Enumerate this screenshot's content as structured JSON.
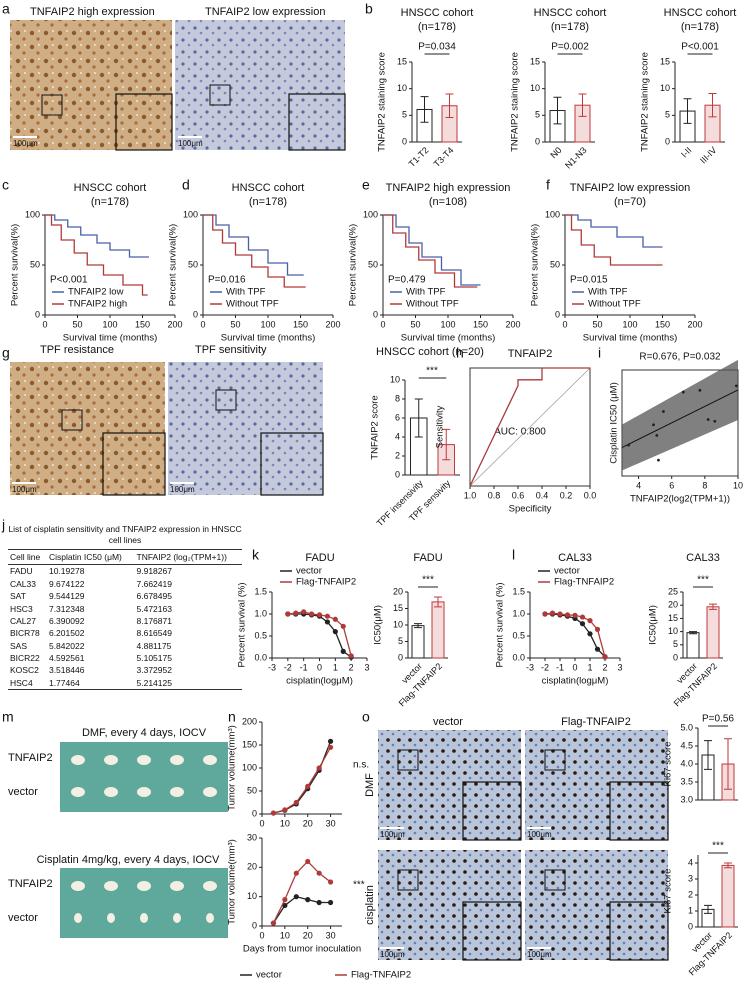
{
  "panel_labels": [
    "a",
    "b",
    "c",
    "d",
    "e",
    "f",
    "g",
    "h",
    "i",
    "j",
    "k",
    "l",
    "m",
    "n",
    "o"
  ],
  "images": {
    "a": {
      "labels": [
        "TNFAIP2 high expression",
        "TNFAIP2 low expression"
      ],
      "scale": [
        "100μm",
        "100μm"
      ]
    },
    "g": {
      "labels": [
        "TPF resistance",
        "TPF sensitivity"
      ],
      "scale": [
        "100μm",
        "100μm"
      ]
    },
    "m": {
      "top_title": "DMF, every 4 days, IOCV",
      "top_rows": [
        "TNFAIP2",
        "vector"
      ],
      "bottom_title": "Cisplatin 4mg/kg, every 4 days, IOCV",
      "bottom_rows": [
        "TNFAIP2",
        "vector"
      ]
    },
    "o": {
      "columns": [
        "vector",
        "Flag-TNFAIP2"
      ],
      "rows": [
        "DMF",
        "cisplatin"
      ],
      "scale": [
        "100μm",
        "100μm",
        "100μm",
        "100μm"
      ]
    }
  },
  "table": {
    "title": "List of cisplatin sensitivity and TNFAIP2 expression in HNSCC cell lines",
    "header": [
      "Cell line",
      "Cisplatin IC50 (μM)",
      "TNFAIP2 (log₂(TPM+1))"
    ],
    "rows": [
      [
        "FADU",
        "10.19278",
        "9.918267"
      ],
      [
        "CAL33",
        "9.674122",
        "7.662419"
      ],
      [
        "SAT",
        "9.544129",
        "6.678495"
      ],
      [
        "HSC3",
        "7.312348",
        "5.472163"
      ],
      [
        "CAL27",
        "6.390092",
        "8.176871"
      ],
      [
        "BICR78",
        "6.201502",
        "8.616549"
      ],
      [
        "SAS",
        "5.842022",
        "4.881175"
      ],
      [
        "BICR22",
        "4.592561",
        "5.105175"
      ],
      [
        "KOSC2",
        "3.518446",
        "3.372952"
      ],
      [
        "HSC4",
        "1.77464",
        "5.214125"
      ]
    ]
  },
  "chart_data": [
    {
      "type": "bar",
      "title": "HNSCC cohort",
      "subtitle": "(n=178)",
      "annotation": "P=0.034",
      "y_label": "TNFAIP2 staining score",
      "categories": [
        "T1-T2",
        "T3-T4"
      ],
      "values": [
        6.1,
        6.8
      ],
      "errors": [
        2.4,
        2.2
      ],
      "colors": [
        "#222222",
        "#c0393b"
      ],
      "ylim": [
        0,
        15
      ],
      "yticks": [
        0,
        5,
        10,
        15
      ]
    },
    {
      "type": "bar",
      "title": "HNSCC cohort",
      "subtitle": "(n=178)",
      "annotation": "P=0.002",
      "y_label": "TNFAIP2 staining score",
      "categories": [
        "N0",
        "N1-N3"
      ],
      "values": [
        5.9,
        6.9
      ],
      "errors": [
        2.5,
        2.1
      ],
      "colors": [
        "#222222",
        "#c0393b"
      ],
      "ylim": [
        0,
        15
      ],
      "yticks": [
        0,
        5,
        10,
        15
      ]
    },
    {
      "type": "bar",
      "title": "HNSCC cohort",
      "subtitle": "(n=178)",
      "annotation": "P<0.001",
      "y_label": "TNFAIP2 staining score",
      "categories": [
        "I-II",
        "III-IV"
      ],
      "values": [
        5.8,
        6.9
      ],
      "errors": [
        2.3,
        2.2
      ],
      "colors": [
        "#222222",
        "#c0393b"
      ],
      "ylim": [
        0,
        15
      ],
      "yticks": [
        0,
        5,
        10,
        15
      ]
    },
    {
      "type": "line",
      "title": "HNSCC cohort",
      "subtitle": "(n=178)",
      "annotation": "P<0.001",
      "x_label": "Survival time (months)",
      "y_label": "Percent survival(%)",
      "xlim": [
        0,
        200
      ],
      "xticks": [
        0,
        50,
        100,
        150,
        200
      ],
      "ylim": [
        0,
        100
      ],
      "yticks": [
        0,
        50,
        100
      ],
      "series": [
        {
          "name": "TNFAIP2 low",
          "color": "#4a5fa8",
          "x": [
            0,
            15,
            15,
            35,
            35,
            55,
            55,
            80,
            80,
            100,
            100,
            130,
            130,
            160
          ],
          "values": [
            100,
            100,
            95,
            95,
            88,
            88,
            80,
            80,
            72,
            72,
            65,
            65,
            58,
            58
          ]
        },
        {
          "name": "TNFAIP2 high",
          "color": "#b03a3a",
          "x": [
            0,
            10,
            10,
            25,
            25,
            45,
            45,
            65,
            65,
            90,
            90,
            120,
            120,
            150,
            150,
            158
          ],
          "values": [
            100,
            100,
            90,
            90,
            75,
            75,
            62,
            62,
            50,
            50,
            40,
            40,
            30,
            30,
            20,
            20
          ]
        }
      ]
    },
    {
      "type": "line",
      "title": "HNSCC cohort",
      "subtitle": "(n=178)",
      "annotation": "P=0.016",
      "x_label": "Survival time (months)",
      "y_label": "Percent survival(%)",
      "xlim": [
        0,
        200
      ],
      "xticks": [
        0,
        50,
        100,
        150,
        200
      ],
      "ylim": [
        0,
        100
      ],
      "yticks": [
        0,
        50,
        100
      ],
      "series": [
        {
          "name": "With TPF",
          "color": "#4a5fa8",
          "x": [
            0,
            20,
            20,
            40,
            40,
            70,
            70,
            100,
            100,
            130,
            130,
            155
          ],
          "values": [
            100,
            100,
            90,
            90,
            78,
            78,
            65,
            65,
            52,
            52,
            40,
            40
          ]
        },
        {
          "name": "Without TPF",
          "color": "#b03a3a",
          "x": [
            0,
            15,
            15,
            30,
            30,
            50,
            50,
            75,
            75,
            100,
            100,
            125,
            125,
            158
          ],
          "values": [
            100,
            100,
            85,
            85,
            72,
            72,
            60,
            60,
            48,
            48,
            38,
            38,
            28,
            28
          ]
        }
      ]
    },
    {
      "type": "line",
      "title": "TNFAIP2 high expression",
      "subtitle": "(n=108)",
      "annotation": "P=0.479",
      "x_label": "Survival time (months)",
      "y_label": "Percent survival(%)",
      "xlim": [
        0,
        200
      ],
      "xticks": [
        0,
        50,
        100,
        150,
        200
      ],
      "ylim": [
        0,
        100
      ],
      "yticks": [
        0,
        50,
        100
      ],
      "series": [
        {
          "name": "With TPF",
          "color": "#4a5fa8",
          "x": [
            0,
            20,
            20,
            40,
            40,
            60,
            60,
            90,
            90,
            120,
            120,
            150
          ],
          "values": [
            100,
            100,
            88,
            88,
            72,
            72,
            58,
            58,
            45,
            45,
            30,
            30
          ]
        },
        {
          "name": "Without TPF",
          "color": "#b03a3a",
          "x": [
            0,
            15,
            15,
            35,
            35,
            55,
            55,
            80,
            80,
            110,
            110,
            145
          ],
          "values": [
            100,
            100,
            82,
            82,
            68,
            68,
            55,
            55,
            42,
            42,
            28,
            28
          ]
        }
      ]
    },
    {
      "type": "line",
      "title": "TNFAIP2 low expression",
      "subtitle": "(n=70)",
      "annotation": "P=0.015",
      "x_label": "Survival time (months)",
      "y_label": "Percent survival(%)",
      "xlim": [
        0,
        200
      ],
      "xticks": [
        0,
        50,
        100,
        150,
        200
      ],
      "ylim": [
        0,
        100
      ],
      "yticks": [
        0,
        50,
        100
      ],
      "series": [
        {
          "name": "With TPF",
          "color": "#4a5fa8",
          "x": [
            0,
            20,
            20,
            40,
            40,
            80,
            80,
            120,
            120,
            150
          ],
          "values": [
            100,
            100,
            95,
            95,
            88,
            88,
            78,
            78,
            68,
            68
          ]
        },
        {
          "name": "Without TPF",
          "color": "#b03a3a",
          "x": [
            0,
            10,
            10,
            25,
            25,
            45,
            45,
            70,
            70,
            150
          ],
          "values": [
            100,
            100,
            85,
            85,
            70,
            70,
            58,
            58,
            50,
            50
          ]
        }
      ]
    },
    {
      "type": "bar",
      "title": "HNSCC cohort (n=20)",
      "annotation": "***",
      "y_label": "TNFAIP2 score",
      "categories": [
        "TPF insensivity",
        "TPF sensivity"
      ],
      "values": [
        6.0,
        3.2
      ],
      "errors": [
        2.0,
        1.6
      ],
      "colors": [
        "#222222",
        "#c0393b"
      ],
      "ylim": [
        0,
        10
      ],
      "yticks": [
        0,
        2,
        4,
        6,
        8,
        10
      ]
    },
    {
      "type": "line",
      "title": "TNFAIP2",
      "annotation": "AUC: 0.800",
      "x_label": "Specificity",
      "y_label": "Sensitivity",
      "xlim": [
        1,
        0
      ],
      "xticks": [
        {
          "value": 1,
          "label": "1.0"
        },
        0.8,
        0.6,
        0.4,
        0.2,
        {
          "value": 0,
          "label": "0.0"
        }
      ],
      "ylim": [
        0,
        1
      ],
      "series": [
        {
          "color": "#a83a3a",
          "x": [
            1,
            0.6,
            0.6,
            0.4,
            0.4,
            0
          ],
          "values": [
            0,
            0.85,
            0.9,
            0.9,
            1,
            1
          ]
        }
      ]
    },
    {
      "type": "scatter",
      "annotation": "R=0.676, P=0.032",
      "x_label": "TNFAIP2(log2(TPM+1))",
      "y_label": "Cisplatin IC50 (μM)",
      "xlim": [
        3,
        10
      ],
      "xticks": [
        4,
        6,
        8,
        10
      ],
      "ylim": [
        0,
        12
      ],
      "color": "#222222",
      "x": [
        9.9,
        7.7,
        6.7,
        5.5,
        8.2,
        8.6,
        4.9,
        5.1,
        3.4,
        5.2
      ],
      "values": [
        10.2,
        9.7,
        9.5,
        7.3,
        6.4,
        6.2,
        5.8,
        4.6,
        3.5,
        1.8
      ]
    },
    {
      "type": "line",
      "title": "FADU",
      "x_label": "cisplatin(logμM)",
      "y_label": "Percent survival (%)",
      "xlim": [
        -3,
        3
      ],
      "xticks": [
        -3,
        -2,
        -1,
        0,
        1,
        2,
        3
      ],
      "ylim": [
        0,
        1.5
      ],
      "yticks": [
        {
          "value": 0,
          "label": "0.0"
        },
        0.5,
        {
          "value": 1,
          "label": "1.0"
        },
        1.5
      ],
      "markers": true,
      "series": [
        {
          "name": "vector",
          "color": "#222222",
          "x": [
            -2,
            -1.5,
            -1,
            -0.5,
            0,
            0.5,
            1,
            1.5,
            2
          ],
          "values": [
            1,
            1,
            1,
            0.98,
            0.95,
            0.82,
            0.6,
            0.15,
            0.02
          ]
        },
        {
          "name": "Flag-TNFAIP2",
          "color": "#b03a3a",
          "x": [
            -2,
            -1.5,
            -1,
            -0.5,
            0,
            0.5,
            1,
            1.5,
            2
          ],
          "values": [
            1,
            1.02,
            1.05,
            1,
            0.98,
            0.95,
            0.88,
            0.72,
            0.05
          ]
        }
      ]
    },
    {
      "type": "bar",
      "title": "FADU",
      "annotation": "***",
      "y_label": "IC50(μM)",
      "categories": [
        "vector",
        "Flag-TNFAIP2"
      ],
      "values": [
        9.8,
        17.0
      ],
      "errors": [
        0.6,
        1.5
      ],
      "colors": [
        "#222222",
        "#c0393b"
      ],
      "ylim": [
        0,
        20
      ],
      "yticks": [
        0,
        5,
        10,
        15,
        20
      ]
    },
    {
      "type": "line",
      "title": "CAL33",
      "x_label": "cisplatin(logμM)",
      "y_label": "Percent survival (%)",
      "xlim": [
        -3,
        3
      ],
      "xticks": [
        -3,
        -2,
        -1,
        0,
        1,
        2,
        3
      ],
      "ylim": [
        0,
        1.5
      ],
      "yticks": [
        {
          "value": 0,
          "label": "0.0"
        },
        0.5,
        {
          "value": 1,
          "label": "1.0"
        },
        1.5
      ],
      "markers": true,
      "series": [
        {
          "name": "vector",
          "color": "#222222",
          "x": [
            -2,
            -1.5,
            -1,
            -0.5,
            0,
            0.5,
            1,
            1.5,
            2
          ],
          "values": [
            1,
            1,
            0.98,
            0.95,
            0.9,
            0.78,
            0.55,
            0.2,
            0.03
          ]
        },
        {
          "name": "Flag-TNFAIP2",
          "color": "#b03a3a",
          "x": [
            -2,
            -1.5,
            -1,
            -0.5,
            0,
            0.5,
            1,
            1.5,
            2
          ],
          "values": [
            1,
            1.02,
            1,
            0.98,
            0.97,
            0.93,
            0.85,
            0.65,
            0.02
          ]
        }
      ]
    },
    {
      "type": "bar",
      "title": "CAL33",
      "annotation": "***",
      "y_label": "IC50(μM)",
      "categories": [
        "vector",
        "Flag-TNFAIP2"
      ],
      "values": [
        9.6,
        19.4
      ],
      "errors": [
        0.4,
        1.0
      ],
      "colors": [
        "#222222",
        "#c0393b"
      ],
      "ylim": [
        0,
        25
      ],
      "yticks": [
        0,
        5,
        10,
        15,
        20,
        25
      ]
    },
    {
      "type": "line",
      "annotation": "n.s.",
      "y_label": "Tumor volume(mm³)",
      "xlim": [
        0,
        35
      ],
      "xticks": [
        0,
        10,
        20,
        30
      ],
      "ylim": [
        0,
        200
      ],
      "yticks": [
        0,
        50,
        100,
        150,
        200
      ],
      "markers": true,
      "series": [
        {
          "color": "#222222",
          "x": [
            5,
            10,
            15,
            20,
            25,
            30
          ],
          "values": [
            2,
            8,
            22,
            55,
            95,
            158
          ]
        },
        {
          "color": "#b03a3a",
          "x": [
            5,
            10,
            15,
            20,
            25,
            30
          ],
          "values": [
            2,
            9,
            25,
            60,
            100,
            145
          ]
        }
      ]
    },
    {
      "type": "line",
      "annotation": "***",
      "x_label": "Days from tumor inoculation",
      "y_label": "Tumor volume(mm³)",
      "xlim": [
        0,
        35
      ],
      "xticks": [
        0,
        10,
        20,
        30
      ],
      "ylim": [
        0,
        30
      ],
      "yticks": [
        0,
        10,
        20,
        30
      ],
      "markers": true,
      "series": [
        {
          "name": "vector",
          "color": "#222222",
          "x": [
            5,
            10,
            15,
            20,
            25,
            30
          ],
          "values": [
            1,
            7,
            10,
            9,
            8,
            8
          ]
        },
        {
          "name": "Flag-TNFAIP2",
          "color": "#b03a3a",
          "x": [
            5,
            10,
            15,
            20,
            25,
            30
          ],
          "values": [
            1,
            9,
            18,
            22,
            18,
            15
          ]
        }
      ]
    },
    {
      "type": "bar",
      "annotation": "P=0.56",
      "y_label": "Ki67 score",
      "categories": [
        null,
        null
      ],
      "values": [
        4.25,
        4.0
      ],
      "errors": [
        0.4,
        0.7
      ],
      "colors": [
        "#222222",
        "#c0393b"
      ],
      "ylim": [
        3,
        5
      ],
      "yticks": [
        {
          "value": 3,
          "label": "3.0"
        },
        3.5,
        {
          "value": 4,
          "label": "4.0"
        },
        4.5,
        {
          "value": 5,
          "label": "5.0"
        }
      ]
    },
    {
      "type": "bar",
      "annotation": "***",
      "y_label": "Ki67 score",
      "categories": [
        "vector",
        "Flag-TNFAIP2"
      ],
      "values": [
        1.1,
        3.85
      ],
      "errors": [
        0.25,
        0.15
      ],
      "colors": [
        "#222222",
        "#c0393b"
      ],
      "ylim": [
        0,
        4.5
      ],
      "yticks": [
        0,
        1,
        2,
        3,
        4
      ]
    }
  ]
}
